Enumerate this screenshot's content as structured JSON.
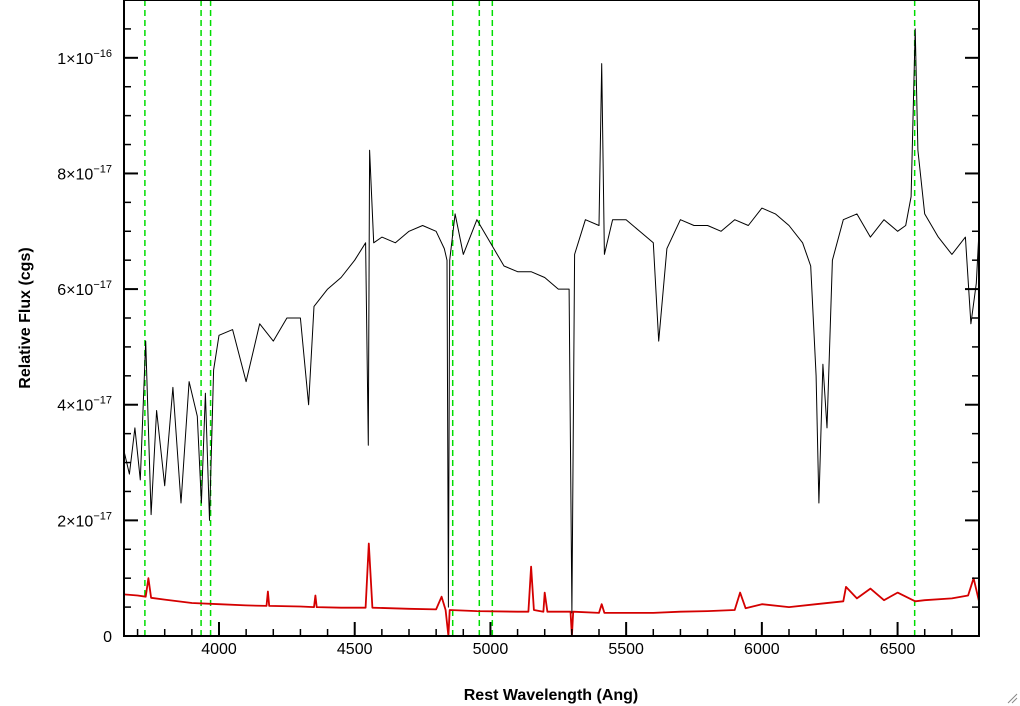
{
  "chart_data": {
    "type": "line",
    "title": "",
    "xlabel": "Rest Wavelength (Ang)",
    "ylabel": "Relative Flux (cgs)",
    "xlim": [
      3650,
      6800
    ],
    "ylim": [
      0,
      1.1e-16
    ],
    "x_ticks": [
      {
        "value": 4000,
        "label": "4000"
      },
      {
        "value": 4500,
        "label": "4500"
      },
      {
        "value": 5000,
        "label": "5000"
      },
      {
        "value": 5500,
        "label": "5500"
      },
      {
        "value": 6000,
        "label": "6000"
      },
      {
        "value": 6500,
        "label": "6500"
      }
    ],
    "y_ticks": [
      {
        "value": 0,
        "mant": "0",
        "exp": ""
      },
      {
        "value": 2e-17,
        "mant": "2×10",
        "exp": "−17"
      },
      {
        "value": 4e-17,
        "mant": "4×10",
        "exp": "−17"
      },
      {
        "value": 6e-17,
        "mant": "6×10",
        "exp": "−17"
      },
      {
        "value": 8e-17,
        "mant": "8×10",
        "exp": "−17"
      },
      {
        "value": 1e-16,
        "mant": "1×10",
        "exp": "−16"
      }
    ],
    "grid": false,
    "series": [
      {
        "color": "#000000",
        "points": [
          [
            3650,
            3.2e-17
          ],
          [
            3670,
            2.8e-17
          ],
          [
            3690,
            3.6e-17
          ],
          [
            3710,
            2.7e-17
          ],
          [
            3730,
            5.1e-17
          ],
          [
            3750,
            2.1e-17
          ],
          [
            3770,
            3.9e-17
          ],
          [
            3800,
            2.6e-17
          ],
          [
            3830,
            4.3e-17
          ],
          [
            3860,
            2.3e-17
          ],
          [
            3890,
            4.4e-17
          ],
          [
            3920,
            3.8e-17
          ],
          [
            3935,
            2.3e-17
          ],
          [
            3950,
            4.2e-17
          ],
          [
            3965,
            2e-17
          ],
          [
            3980,
            4.6e-17
          ],
          [
            4000,
            5.2e-17
          ],
          [
            4050,
            5.3e-17
          ],
          [
            4100,
            4.4e-17
          ],
          [
            4150,
            5.4e-17
          ],
          [
            4200,
            5.1e-17
          ],
          [
            4250,
            5.5e-17
          ],
          [
            4300,
            5.5e-17
          ],
          [
            4330,
            4e-17
          ],
          [
            4350,
            5.7e-17
          ],
          [
            4400,
            6e-17
          ],
          [
            4450,
            6.2e-17
          ],
          [
            4500,
            6.5e-17
          ],
          [
            4540,
            6.8e-17
          ],
          [
            4550,
            3.3e-17
          ],
          [
            4555,
            8.4e-17
          ],
          [
            4570,
            6.8e-17
          ],
          [
            4600,
            6.9e-17
          ],
          [
            4650,
            6.8e-17
          ],
          [
            4700,
            7e-17
          ],
          [
            4750,
            7.1e-17
          ],
          [
            4800,
            7e-17
          ],
          [
            4830,
            6.7e-17
          ],
          [
            4840,
            6.5e-17
          ],
          [
            4845,
            5e-18
          ],
          [
            4850,
            6.5e-17
          ],
          [
            4870,
            7.3e-17
          ],
          [
            4900,
            6.6e-17
          ],
          [
            4950,
            7.2e-17
          ],
          [
            5000,
            6.8e-17
          ],
          [
            5050,
            6.4e-17
          ],
          [
            5100,
            6.3e-17
          ],
          [
            5150,
            6.3e-17
          ],
          [
            5200,
            6.2e-17
          ],
          [
            5250,
            6e-17
          ],
          [
            5290,
            6e-17
          ],
          [
            5300,
            4e-18
          ],
          [
            5310,
            6.6e-17
          ],
          [
            5350,
            7.2e-17
          ],
          [
            5400,
            7.1e-17
          ],
          [
            5410,
            9.9e-17
          ],
          [
            5420,
            6.6e-17
          ],
          [
            5450,
            7.2e-17
          ],
          [
            5500,
            7.2e-17
          ],
          [
            5550,
            7e-17
          ],
          [
            5600,
            6.8e-17
          ],
          [
            5620,
            5.1e-17
          ],
          [
            5650,
            6.7e-17
          ],
          [
            5700,
            7.2e-17
          ],
          [
            5750,
            7.1e-17
          ],
          [
            5800,
            7.1e-17
          ],
          [
            5850,
            7e-17
          ],
          [
            5900,
            7.2e-17
          ],
          [
            5950,
            7.1e-17
          ],
          [
            6000,
            7.4e-17
          ],
          [
            6050,
            7.3e-17
          ],
          [
            6100,
            7.1e-17
          ],
          [
            6150,
            6.8e-17
          ],
          [
            6180,
            6.4e-17
          ],
          [
            6200,
            4.5e-17
          ],
          [
            6210,
            2.3e-17
          ],
          [
            6225,
            4.7e-17
          ],
          [
            6240,
            3.6e-17
          ],
          [
            6260,
            6.5e-17
          ],
          [
            6300,
            7.2e-17
          ],
          [
            6350,
            7.3e-17
          ],
          [
            6400,
            6.9e-17
          ],
          [
            6450,
            7.2e-17
          ],
          [
            6500,
            7e-17
          ],
          [
            6530,
            7.1e-17
          ],
          [
            6550,
            7.6e-17
          ],
          [
            6565,
            1.05e-16
          ],
          [
            6575,
            8.4e-17
          ],
          [
            6600,
            7.3e-17
          ],
          [
            6650,
            6.9e-17
          ],
          [
            6700,
            6.6e-17
          ],
          [
            6750,
            6.9e-17
          ],
          [
            6770,
            5.4e-17
          ],
          [
            6790,
            6.1e-17
          ],
          [
            6800,
            7e-17
          ]
        ]
      },
      {
        "color": "#d40000",
        "points": [
          [
            3650,
            7.2e-18
          ],
          [
            3700,
            7e-18
          ],
          [
            3730,
            6.8e-18
          ],
          [
            3740,
            1e-17
          ],
          [
            3750,
            6.6e-18
          ],
          [
            3800,
            6.3e-18
          ],
          [
            3900,
            5.7e-18
          ],
          [
            4000,
            5.5e-18
          ],
          [
            4100,
            5.3e-18
          ],
          [
            4175,
            5.2e-18
          ],
          [
            4180,
            7.7e-18
          ],
          [
            4185,
            5.2e-18
          ],
          [
            4300,
            5.1e-18
          ],
          [
            4350,
            5e-18
          ],
          [
            4355,
            7e-18
          ],
          [
            4360,
            5e-18
          ],
          [
            4450,
            4.9e-18
          ],
          [
            4540,
            4.9e-18
          ],
          [
            4552,
            1.6e-17
          ],
          [
            4565,
            4.9e-18
          ],
          [
            4700,
            4.7e-18
          ],
          [
            4800,
            4.6e-18
          ],
          [
            4820,
            6.8e-18
          ],
          [
            4835,
            4.5e-18
          ],
          [
            4845,
            -5e-18
          ],
          [
            4850,
            4.5e-18
          ],
          [
            4950,
            4.3e-18
          ],
          [
            5100,
            4.2e-18
          ],
          [
            5140,
            4.2e-18
          ],
          [
            5150,
            1.2e-17
          ],
          [
            5160,
            4.5e-18
          ],
          [
            5195,
            4.2e-18
          ],
          [
            5200,
            7.5e-18
          ],
          [
            5210,
            4.2e-18
          ],
          [
            5295,
            4.2e-18
          ],
          [
            5300,
            -4e-18
          ],
          [
            5305,
            4.2e-18
          ],
          [
            5400,
            4e-18
          ],
          [
            5410,
            5.5e-18
          ],
          [
            5420,
            4e-18
          ],
          [
            5600,
            4e-18
          ],
          [
            5700,
            4.2e-18
          ],
          [
            5800,
            4.3e-18
          ],
          [
            5900,
            4.5e-18
          ],
          [
            5920,
            7.5e-18
          ],
          [
            5940,
            4.8e-18
          ],
          [
            6000,
            5.5e-18
          ],
          [
            6100,
            5e-18
          ],
          [
            6200,
            5.5e-18
          ],
          [
            6300,
            6e-18
          ],
          [
            6310,
            8.5e-18
          ],
          [
            6350,
            6.5e-18
          ],
          [
            6400,
            8.2e-18
          ],
          [
            6450,
            6.2e-18
          ],
          [
            6500,
            7.5e-18
          ],
          [
            6565,
            6e-18
          ],
          [
            6600,
            6.2e-18
          ],
          [
            6700,
            6.5e-18
          ],
          [
            6760,
            7e-18
          ],
          [
            6780,
            1e-17
          ],
          [
            6800,
            6e-18
          ]
        ]
      }
    ],
    "vlines": {
      "color": "#00dd00",
      "positions": [
        3727,
        3934,
        3969,
        4861,
        4959,
        5007,
        6563
      ]
    }
  }
}
